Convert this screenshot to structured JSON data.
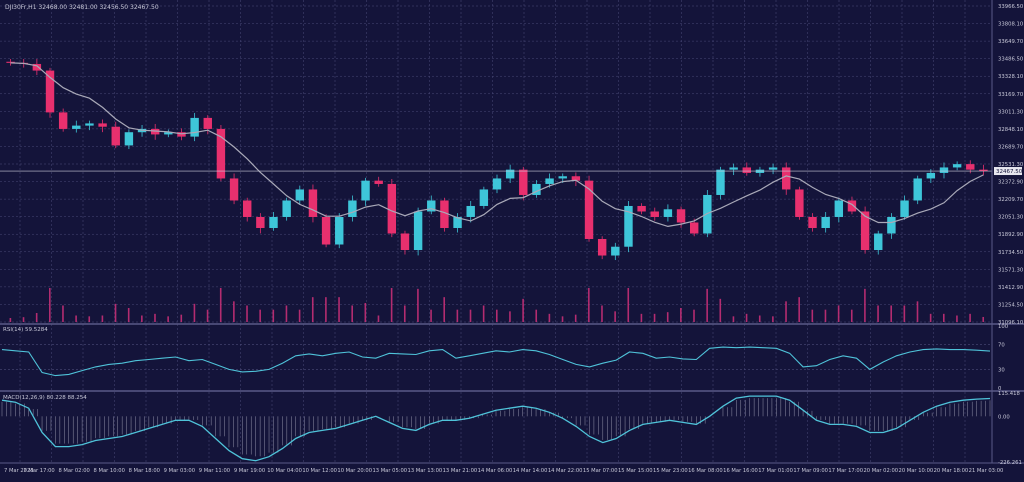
{
  "colors": {
    "background": "#14143a",
    "grid": "#4a4a78",
    "bull": "#3ec6d9",
    "bear": "#e8306e",
    "ma": "#a9a9b8",
    "text": "#c8c8d8",
    "panel_border": "#5a5a88",
    "price_tag_bg": "#e6e6ee",
    "rsi_line": "#4fc3d9",
    "macd_line": "#4fc3d9",
    "macd_hist": "#c8c8d8",
    "volume": "#d0307a"
  },
  "header": {
    "symbol_line": "DJI30Fr,H1  32468.00 32481.00 32456.50 32467.50"
  },
  "price_panel": {
    "price_axis_labels": [
      "33966.50",
      "33808.10",
      "33649.70",
      "33486.50",
      "33328.10",
      "33169.70",
      "33011.30",
      "32848.10",
      "32689.70",
      "32531.30",
      "32372.90",
      "32209.70",
      "32051.30",
      "31892.90",
      "31734.50",
      "31571.30",
      "31412.90",
      "31254.50",
      "31096.10"
    ],
    "current_price_label": "32467.50",
    "current_price": 32467.5,
    "y_range": [
      31096.1,
      33966.5
    ],
    "ma_period_note": ""
  },
  "rsi_panel": {
    "label": "RSI(14) 59.5284",
    "axis_labels": [
      "100",
      "70",
      "30",
      "0"
    ],
    "y_range": [
      0,
      100
    ]
  },
  "macd_panel": {
    "label": "MACD(12,26,9) 80.228 88.254",
    "axis_labels": [
      "115.418",
      "0.00",
      "-226.261"
    ],
    "y_range": [
      -226.261,
      115.418
    ]
  },
  "x_axis_labels": [
    "7 Mar 2023",
    "7 Mar 17:00",
    "8 Mar 02:00",
    "8 Mar 10:00",
    "8 Mar 18:00",
    "9 Mar 03:00",
    "9 Mar 11:00",
    "9 Mar 19:00",
    "10 Mar 04:00",
    "10 Mar 12:00",
    "10 Mar 20:00",
    "13 Mar 05:00",
    "13 Mar 13:00",
    "13 Mar 21:00",
    "14 Mar 06:00",
    "14 Mar 14:00",
    "14 Mar 22:00",
    "15 Mar 07:00",
    "15 Mar 15:00",
    "15 Mar 23:00",
    "16 Mar 08:00",
    "16 Mar 16:00",
    "17 Mar 01:00",
    "17 Mar 09:00",
    "17 Mar 17:00",
    "20 Mar 02:00",
    "20 Mar 10:00",
    "20 Mar 18:00",
    "21 Mar 03:00"
  ],
  "chart_data": [
    {
      "type": "candlestick",
      "title": "DJI30Fr,H1",
      "key_closes": [
        33450,
        33440,
        33380,
        33000,
        32850,
        32880,
        32900,
        32870,
        32700,
        32820,
        32850,
        32800,
        32820,
        32780,
        32950,
        32850,
        32400,
        32200,
        32050,
        31950,
        32050,
        32200,
        32300,
        32050,
        31800,
        32050,
        32200,
        32380,
        32350,
        31900,
        31750,
        32100,
        32200,
        31950,
        32050,
        32150,
        32300,
        32400,
        32480,
        32250,
        32350,
        32400,
        32420,
        32380,
        31850,
        31700,
        31780,
        32150,
        32100,
        32050,
        32120,
        32000,
        31900,
        32250,
        32480,
        32500,
        32450,
        32480,
        32500,
        32300,
        32050,
        31950,
        32050,
        32200,
        32100,
        31750,
        31900,
        32050,
        32200,
        32400,
        32450,
        32500,
        32530,
        32480,
        32467.5
      ],
      "ma_note": "",
      "volume": "histogram bars in lower price panel"
    },
    {
      "type": "line",
      "title": "RSI(14) 59.5284",
      "ylim": [
        0,
        100
      ],
      "levels": [
        70,
        30
      ],
      "values": [
        62,
        60,
        58,
        25,
        20,
        22,
        28,
        34,
        38,
        40,
        44,
        46,
        48,
        50,
        44,
        46,
        38,
        30,
        26,
        27,
        30,
        40,
        52,
        55,
        52,
        56,
        58,
        50,
        48,
        56,
        55,
        54,
        60,
        62,
        48,
        52,
        56,
        60,
        58,
        62,
        60,
        54,
        46,
        38,
        34,
        40,
        45,
        58,
        56,
        48,
        50,
        47,
        46,
        64,
        66,
        65,
        66,
        65,
        64,
        56,
        34,
        36,
        46,
        52,
        48,
        30,
        42,
        52,
        58,
        62,
        63,
        62,
        62,
        61,
        59.5
      ]
    },
    {
      "type": "line",
      "title": "MACD(12,26,9) 80.228 88.254",
      "ylim": [
        -226.261,
        115.418
      ],
      "values": [
        80,
        70,
        40,
        -80,
        -150,
        -150,
        -140,
        -120,
        -110,
        -100,
        -80,
        -60,
        -40,
        -20,
        -20,
        -50,
        -110,
        -170,
        -210,
        -220,
        -200,
        -160,
        -110,
        -80,
        -70,
        -60,
        -40,
        -20,
        0,
        -30,
        -60,
        -70,
        -40,
        -20,
        -20,
        -10,
        10,
        30,
        40,
        50,
        40,
        20,
        -10,
        -50,
        -100,
        -130,
        -110,
        -70,
        -40,
        -30,
        -20,
        -30,
        -40,
        0,
        50,
        90,
        100,
        100,
        100,
        80,
        30,
        -20,
        -40,
        -40,
        -50,
        -80,
        -80,
        -60,
        -20,
        20,
        50,
        70,
        80,
        85,
        88
      ]
    }
  ]
}
